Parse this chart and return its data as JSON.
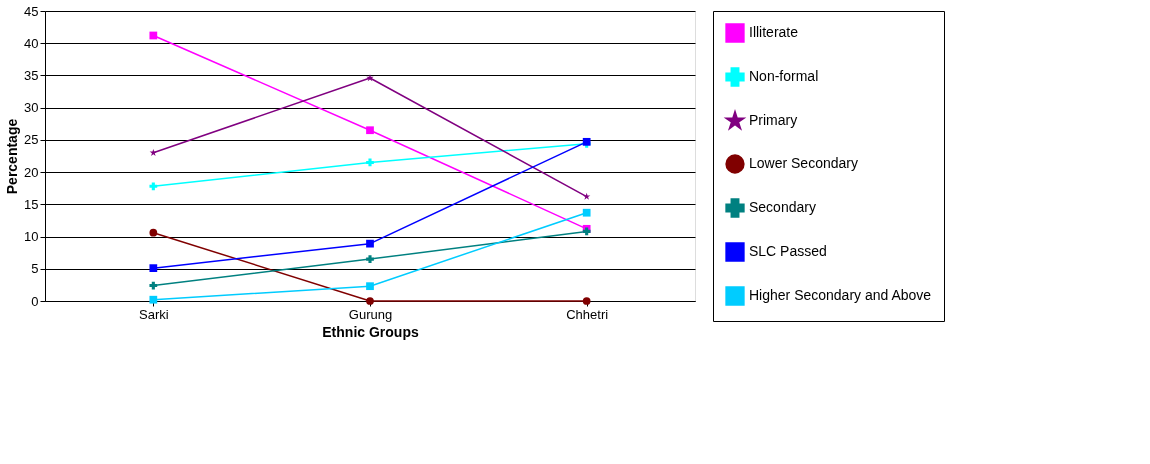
{
  "chart_data": {
    "type": "line",
    "xlabel": "Ethnic Groups",
    "ylabel": "Percentage",
    "categories": [
      "Sarki",
      "Gurung",
      "Chhetri"
    ],
    "ylim": [
      0,
      45
    ],
    "yticks": [
      0,
      5,
      10,
      15,
      20,
      25,
      30,
      35,
      40,
      45
    ],
    "grid": "y",
    "legend": "right",
    "line_style": "solid",
    "series": [
      {
        "name": "Illiterate",
        "color": "#ff00ff",
        "marker": "square",
        "values": [
          41.2,
          26.5,
          11.2
        ]
      },
      {
        "name": "Non-formal",
        "color": "#00ffff",
        "marker": "cross",
        "values": [
          17.8,
          21.5,
          24.4
        ]
      },
      {
        "name": "Primary",
        "color": "#800080",
        "marker": "star",
        "values": [
          23.0,
          34.6,
          16.2
        ]
      },
      {
        "name": "Lower Secondary",
        "color": "#800000",
        "marker": "circle",
        "values": [
          10.6,
          0,
          0
        ]
      },
      {
        "name": "Secondary",
        "color": "#008080",
        "marker": "cross",
        "values": [
          2.4,
          6.5,
          10.8
        ]
      },
      {
        "name": "SLC Passed",
        "color": "#0000ff",
        "marker": "square",
        "values": [
          5.1,
          8.9,
          24.7
        ]
      },
      {
        "name": "Higher Secondary and Above",
        "color": "#00ccff",
        "marker": "square",
        "values": [
          0.2,
          2.3,
          13.7
        ]
      }
    ]
  }
}
